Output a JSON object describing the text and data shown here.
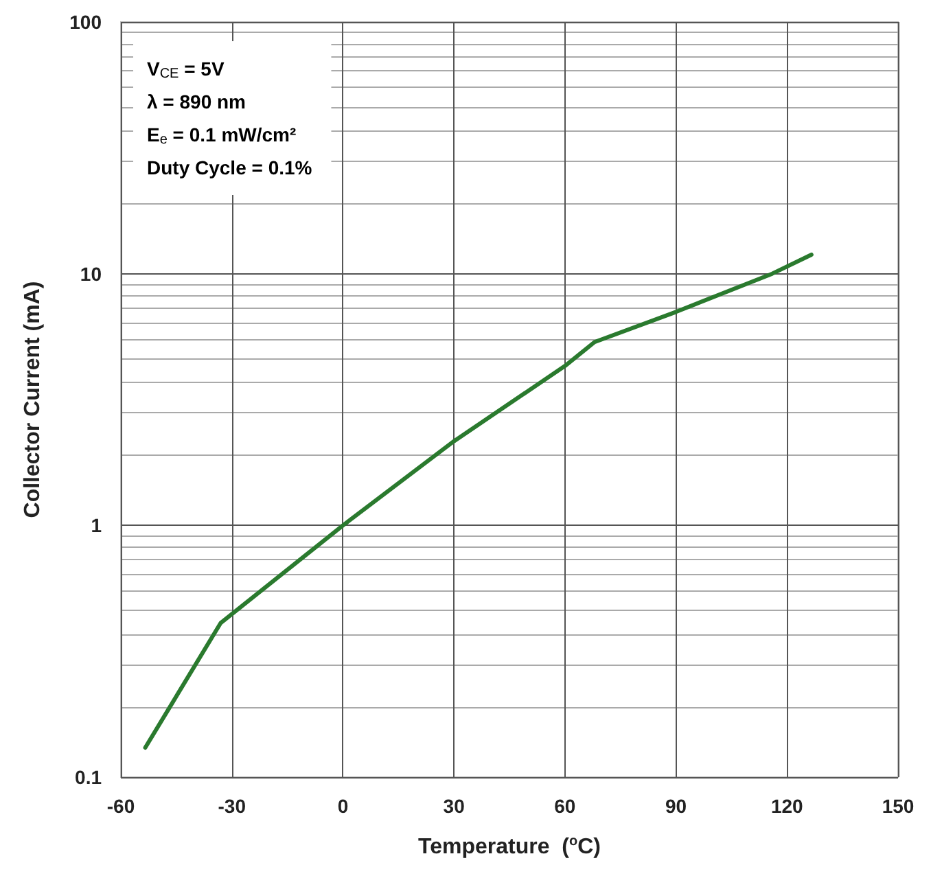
{
  "chart_data": {
    "type": "line",
    "xlabel": "Temperature  ($^{o}$C)",
    "ylabel": "Collector Current (mA)",
    "x": [
      -53.4,
      -33,
      0,
      30,
      60,
      68,
      90,
      116,
      126.6
    ],
    "series": [
      {
        "color": "#2a7a2e",
        "values": [
          0.131,
          0.41,
          1.0,
          2.16,
          4.3,
          5.35,
          7.05,
          10,
          11.9
        ]
      }
    ],
    "xlim": [
      -60,
      150
    ],
    "xticks": [
      -60,
      -30,
      0,
      30,
      60,
      90,
      120,
      150
    ],
    "ylim": [
      0.1,
      100
    ],
    "yticks": [
      0.1,
      1,
      10,
      100
    ],
    "log": true,
    "grid": true,
    "marker": "none",
    "line_style": "solid",
    "annotations": [
      "V$_{CE}$ = 5V",
      "λ = 890 nm",
      "E$_{e}$ = 0.1 mW/cm²",
      "Duty Cycle = 0.1%"
    ]
  }
}
